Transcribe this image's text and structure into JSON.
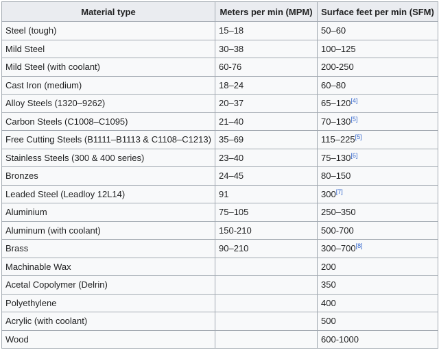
{
  "table": {
    "header": [
      "Material type",
      "Meters per min (MPM)",
      "Surface feet per min (SFM)"
    ],
    "rows": [
      [
        "Steel (tough)",
        "15–18",
        "50–60"
      ],
      [
        "Mild Steel",
        "30–38",
        "100–125"
      ],
      [
        "Mild Steel (with coolant)",
        "60-76",
        "200-250"
      ],
      [
        "Cast Iron (medium)",
        "18–24",
        "60–80"
      ],
      [
        "Alloy Steels (1320–9262)",
        "20–37",
        {
          "text": "65–120",
          "ref": "[4]"
        }
      ],
      [
        "Carbon Steels (C1008–C1095)",
        "21–40",
        {
          "text": "70–130",
          "ref": "[5]"
        }
      ],
      [
        "Free Cutting Steels (B1111–B1113 & C1108–C1213)",
        "35–69",
        {
          "text": "115–225",
          "ref": "[5]"
        }
      ],
      [
        "Stainless Steels (300 & 400 series)",
        "23–40",
        {
          "text": "75–130",
          "ref": "[6]"
        }
      ],
      [
        "Bronzes",
        "24–45",
        "80–150"
      ],
      [
        "Leaded Steel (Leadloy 12L14)",
        "91",
        {
          "text": "300",
          "ref": "[7]"
        }
      ],
      [
        "Aluminium",
        "75–105",
        "250–350"
      ],
      [
        "Aluminum (with coolant)",
        "150-210",
        "500-700"
      ],
      [
        "Brass",
        "90–210",
        {
          "text": "300–700",
          "ref": "[8]"
        }
      ],
      [
        "Machinable Wax",
        null,
        "200"
      ],
      [
        "Acetal Copolymer (Delrin)",
        null,
        "350"
      ],
      [
        "Polyethylene",
        null,
        "400"
      ],
      [
        "Acrylic (with coolant)",
        null,
        "500"
      ],
      [
        "Wood",
        null,
        "600-1000"
      ]
    ]
  }
}
